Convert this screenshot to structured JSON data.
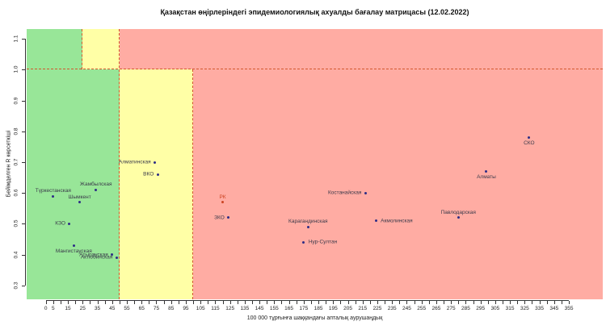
{
  "chart_data": {
    "type": "scatter",
    "title": "Қазақстан өңірлеріндегі эпидемиологиялық ахуалды бағалау матрицасы  (12.02.2022)",
    "xlabel": "100 000 тұрғынға шаққандағы апталық аурушаңдық",
    "ylabel": "Бейімделген R көрсеткіші",
    "xlim": [
      -13,
      378
    ],
    "ylim": [
      0.255,
      1.132
    ],
    "grid": false,
    "legend": "none",
    "x_ticks_minor_step": 5,
    "x_ticks_minor_max": 355,
    "x_tick_labels": [
      0,
      5,
      15,
      25,
      35,
      45,
      55,
      65,
      75,
      85,
      95,
      105,
      115,
      125,
      135,
      145,
      155,
      165,
      175,
      185,
      195,
      205,
      215,
      225,
      235,
      245,
      255,
      265,
      275,
      285,
      295,
      305,
      315,
      325,
      335,
      345,
      355
    ],
    "y_tick_labels": [
      0.3,
      0.4,
      0.5,
      0.6,
      0.7,
      0.8,
      0.9,
      1.0,
      1.1
    ],
    "thresholds": {
      "r_line": 1.0,
      "incidence_lines": [
        25,
        50,
        100
      ]
    },
    "zones": [
      {
        "name": "green-low",
        "x0": -13,
        "x1": 50,
        "y0": 0.255,
        "y1": 1.0,
        "color": "green"
      },
      {
        "name": "yellow-low",
        "x0": 50,
        "x1": 100,
        "y0": 0.255,
        "y1": 1.0,
        "color": "yellow"
      },
      {
        "name": "red-low",
        "x0": 100,
        "x1": 378,
        "y0": 0.255,
        "y1": 1.0,
        "color": "red"
      },
      {
        "name": "green-high",
        "x0": -13,
        "x1": 25,
        "y0": 1.0,
        "y1": 1.132,
        "color": "green"
      },
      {
        "name": "yellow-high",
        "x0": 25,
        "x1": 50,
        "y0": 1.0,
        "y1": 1.132,
        "color": "yellow"
      },
      {
        "name": "red-high",
        "x0": 50,
        "x1": 378,
        "y0": 1.0,
        "y1": 1.132,
        "color": "red"
      }
    ],
    "dashed_lines": [
      {
        "dir": "h",
        "at": 1.0,
        "from": -13,
        "to": 378
      },
      {
        "dir": "v",
        "at": 25,
        "from": 1.0,
        "to": 1.132
      },
      {
        "dir": "v",
        "at": 50,
        "from": 0.255,
        "to": 1.132
      },
      {
        "dir": "v",
        "at": 100,
        "from": 0.255,
        "to": 1.0
      }
    ],
    "colors": {
      "green": "#98e698",
      "yellow": "#ffffa6",
      "red": "#ffaca3",
      "dash": "#d2572e",
      "point": "#2d2d86",
      "point_label": "#3a3a4a",
      "rk": "#cc4422",
      "axis": "#333333"
    },
    "points": [
      {
        "label": "Түркестанская",
        "x": 5,
        "y": 0.59,
        "label_pos": "above"
      },
      {
        "label": "Жамбылская",
        "x": 34,
        "y": 0.61,
        "label_pos": "above"
      },
      {
        "label": "Шымкент",
        "x": 23,
        "y": 0.57,
        "label_pos": "above"
      },
      {
        "label": "КЗО",
        "x": 16,
        "y": 0.5,
        "label_pos": "left"
      },
      {
        "label": "Мангистауская",
        "x": 19,
        "y": 0.43,
        "label_pos": "below"
      },
      {
        "label": "Атырауская",
        "x": 45,
        "y": 0.4,
        "label_pos": "left"
      },
      {
        "label": "Актюбинская",
        "x": 48,
        "y": 0.39,
        "label_pos": "left"
      },
      {
        "label": "Алматинская",
        "x": 74,
        "y": 0.7,
        "label_pos": "left"
      },
      {
        "label": "ВКО",
        "x": 76,
        "y": 0.66,
        "label_pos": "left"
      },
      {
        "label": "РК",
        "x": 120,
        "y": 0.57,
        "label_pos": "above",
        "special": "rk"
      },
      {
        "label": "ЗКО",
        "x": 124,
        "y": 0.52,
        "label_pos": "left"
      },
      {
        "label": "Карагандинская",
        "x": 178,
        "y": 0.49,
        "label_pos": "above"
      },
      {
        "label": "Нур-Султан",
        "x": 175,
        "y": 0.44,
        "label_pos": "right"
      },
      {
        "label": "Костанайская",
        "x": 217,
        "y": 0.6,
        "label_pos": "left"
      },
      {
        "label": "Акмолинская",
        "x": 224,
        "y": 0.51,
        "label_pos": "right"
      },
      {
        "label": "Павлодарская",
        "x": 280,
        "y": 0.52,
        "label_pos": "above"
      },
      {
        "label": "Алматы",
        "x": 299,
        "y": 0.67,
        "label_pos": "below"
      },
      {
        "label": "СКО",
        "x": 328,
        "y": 0.78,
        "label_pos": "below"
      }
    ]
  }
}
